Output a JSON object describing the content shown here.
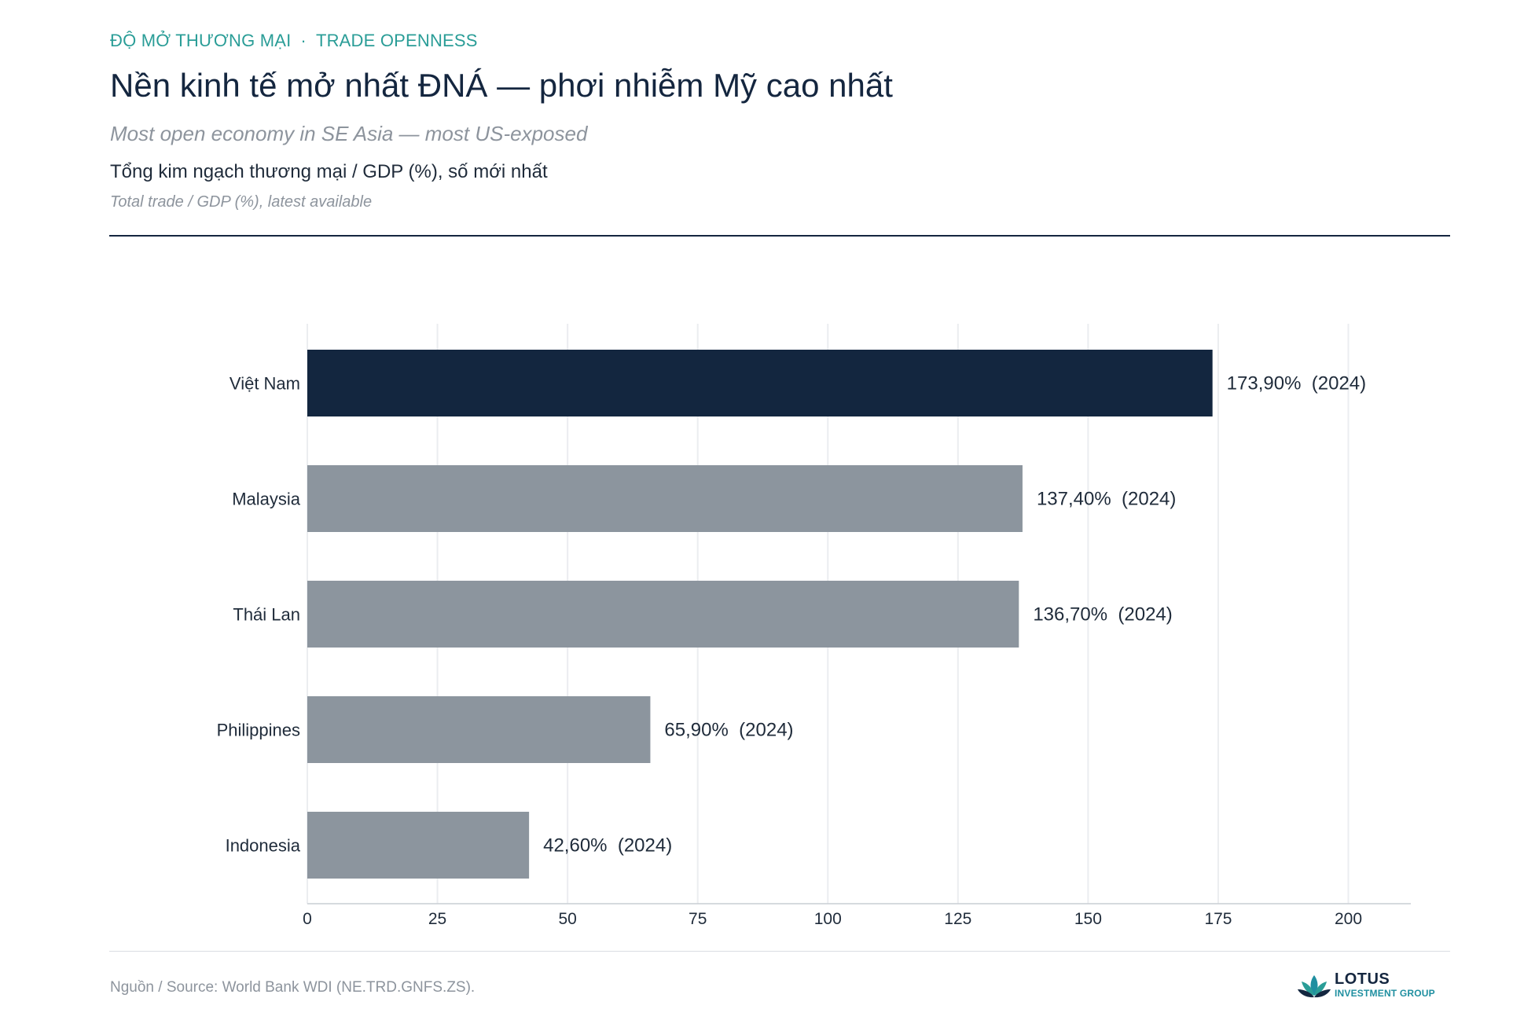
{
  "header": {
    "eyebrow_vi": "ĐỘ MỞ THƯƠNG MẠI",
    "eyebrow_sep": "·",
    "eyebrow_en": "TRADE OPENNESS",
    "title": "Nền kinh tế mở nhất ĐNÁ — phơi nhiễm Mỹ cao nhất",
    "subtitle_en": "Most open economy in SE Asia — most US-exposed",
    "metric_vi": "Tổng kim ngạch thương mại / GDP (%), số mới nhất",
    "metric_en": "Total trade / GDP (%), latest available"
  },
  "chart_data": {
    "type": "bar",
    "orientation": "horizontal",
    "categories": [
      "Việt Nam",
      "Malaysia",
      "Thái Lan",
      "Philippines",
      "Indonesia"
    ],
    "values": [
      173.9,
      137.4,
      136.7,
      65.9,
      42.6
    ],
    "value_labels": [
      "173,90%",
      "137,40%",
      "136,70%",
      "65,90%",
      "42,60%"
    ],
    "years": [
      "(2024)",
      "(2024)",
      "(2024)",
      "(2024)",
      "(2024)"
    ],
    "xlim": [
      0,
      212
    ],
    "xticks": [
      0,
      25,
      50,
      75,
      100,
      125,
      150,
      175,
      200
    ],
    "grid": "vertical",
    "highlight_category": "Việt Nam",
    "colors": {
      "highlight": "#13263f",
      "default": "#8c959e",
      "grid": "#ebedf0",
      "axis": "#c9ced4"
    }
  },
  "footer": {
    "source": "Nguồn / Source: World Bank WDI (NE.TRD.GNFS.ZS).",
    "logo_line1": "LOTUS",
    "logo_line2": "INVESTMENT GROUP"
  }
}
